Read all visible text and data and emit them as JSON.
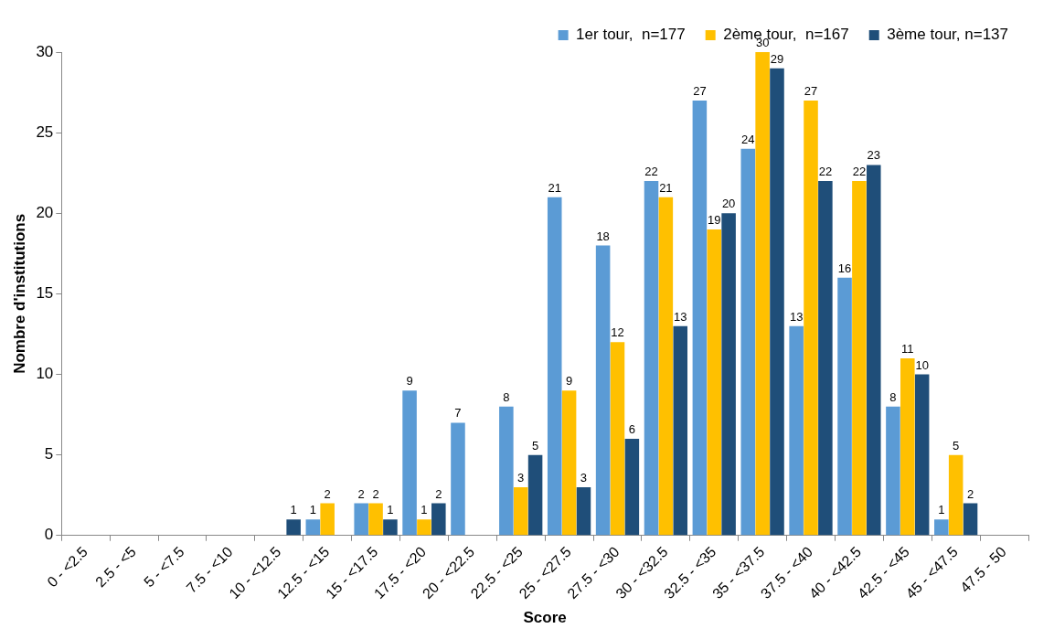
{
  "chart_data": {
    "type": "bar",
    "xlabel": "Score",
    "ylabel": "Nombre d'institutions",
    "categories": [
      "0 - <2.5",
      "2.5 - <5",
      "5 - <7.5",
      "7.5 - <10",
      "10 - <12.5",
      "12.5 - <15",
      "15 - <17.5",
      "17.5 - <20",
      "20 - <22.5",
      "22.5 - <25",
      "25 - <27.5",
      "27.5 - <30",
      "30 - <32.5",
      "32.5 - <35",
      "35 - <37.5",
      "37.5 - <40",
      "40 - <42.5",
      "42.5 - <45",
      "45 - <47.5",
      "47.5 - 50"
    ],
    "series": [
      {
        "name": "1er tour,  n=177",
        "color": "#5b9bd5",
        "values": [
          0,
          0,
          0,
          0,
          0,
          1,
          2,
          9,
          7,
          8,
          21,
          18,
          22,
          27,
          24,
          13,
          16,
          8,
          1,
          0
        ],
        "value_labels": [
          null,
          null,
          null,
          null,
          null,
          "1",
          "2",
          "9",
          "7",
          "8",
          "21",
          "18",
          "22",
          "27",
          "24",
          "13",
          "16",
          "8",
          "1",
          null
        ]
      },
      {
        "name": "2ème tour,  n=167",
        "color": "#ffc000",
        "values": [
          0,
          0,
          0,
          0,
          0,
          2,
          2,
          1,
          0,
          3,
          9,
          12,
          21,
          19,
          30,
          27,
          22,
          11,
          5,
          0
        ],
        "value_labels": [
          null,
          null,
          null,
          null,
          null,
          "2",
          "2",
          "1",
          null,
          "3",
          "9",
          "12",
          "21",
          "19",
          "30",
          "27",
          "22",
          "11",
          "5",
          null
        ]
      },
      {
        "name": "3ème tour, n=137",
        "color": "#1f4e79",
        "values": [
          0,
          0,
          0,
          0,
          1,
          0,
          1,
          2,
          0,
          5,
          3,
          6,
          13,
          20,
          29,
          22,
          23,
          10,
          2,
          0
        ],
        "value_labels": [
          null,
          null,
          null,
          null,
          "1",
          null,
          "1",
          "2",
          null,
          "5",
          "3",
          "6",
          "13",
          "20",
          "29",
          "22",
          "23",
          "10",
          "2",
          null
        ]
      }
    ],
    "ylim": [
      0,
      30
    ],
    "yticks": [
      0,
      5,
      10,
      15,
      20,
      25,
      30
    ],
    "grid": false,
    "legend": "top right"
  }
}
